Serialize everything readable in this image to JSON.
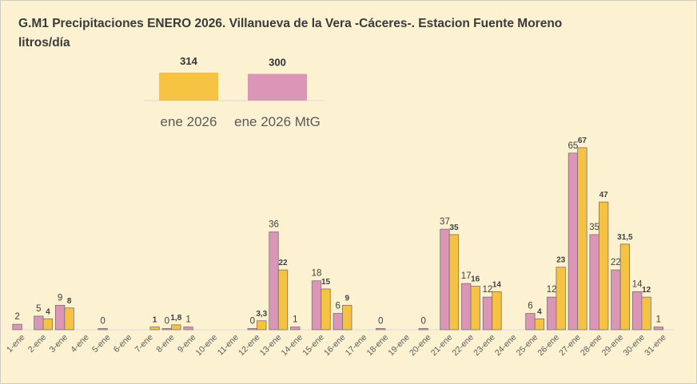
{
  "chart_data": {
    "type": "bar",
    "title": "G.M1 Precipitaciones ENERO 2026. Villanueva de la Vera -Cáceres-. Estacion Fuente Moreno",
    "subtitle": "litros/día",
    "categories": [
      "1-ene",
      "2-ene",
      "3-ene",
      "4-ene",
      "5-ene",
      "6-ene",
      "7-ene",
      "8-ene",
      "9-ene",
      "10-ene",
      "11-ene",
      "12-ene",
      "13-ene",
      "14-ene",
      "15-ene",
      "16-ene",
      "17-ene",
      "18-ene",
      "19-ene",
      "20-ene",
      "21-ene",
      "22-ene",
      "23-ene",
      "24-ene",
      "25-ene",
      "26-ene",
      "27-ene",
      "28-ene",
      "29-ene",
      "30-ene",
      "31-ene"
    ],
    "series": [
      {
        "name": "ene 2026 MtG",
        "color": "#db95b6",
        "values": [
          2,
          5,
          9,
          null,
          0,
          null,
          null,
          0,
          1,
          null,
          null,
          0,
          36,
          1,
          18,
          6,
          null,
          0,
          null,
          0,
          37,
          17,
          12,
          null,
          6,
          12,
          65,
          35,
          22,
          14,
          1
        ],
        "labels": [
          "2",
          "5",
          "9",
          null,
          "0",
          null,
          null,
          "0",
          "1",
          null,
          null,
          "0",
          "36",
          "1",
          "18",
          "6",
          null,
          "0",
          null,
          "0",
          "37",
          "17",
          "12",
          null,
          "6",
          "12",
          "65",
          "35",
          "22",
          "14",
          "1"
        ]
      },
      {
        "name": "ene 2026",
        "color": "#f5c242",
        "values": [
          null,
          4,
          8,
          null,
          null,
          null,
          1,
          1.8,
          null,
          null,
          null,
          3.3,
          22,
          null,
          15,
          9,
          null,
          null,
          null,
          null,
          35,
          16,
          14,
          null,
          4,
          23,
          67,
          47,
          31.5,
          12,
          null
        ],
        "labels": [
          null,
          "4",
          "8",
          null,
          null,
          null,
          "1",
          "1,8",
          null,
          null,
          null,
          "3,3",
          "22",
          null,
          "15",
          "9",
          null,
          null,
          null,
          null,
          "35",
          "16",
          "14",
          null,
          "4",
          "23",
          "67",
          "47",
          "31,5",
          "12",
          null
        ]
      }
    ],
    "totals": [
      {
        "name": "ene 2026",
        "value": 314,
        "label": "314",
        "color": "#f5c242"
      },
      {
        "name": "ene 2026 MtG",
        "value": 300,
        "label": "300",
        "color": "#db95b6"
      }
    ],
    "ylim": [
      0,
      67
    ],
    "grid": false,
    "legend": "top-left"
  }
}
